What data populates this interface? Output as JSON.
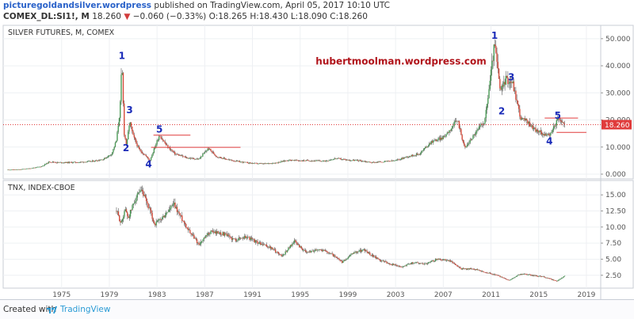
{
  "header": {
    "author": "picturegoldandsilver.wordpress",
    "published": "published on TradingView.com, April 05, 2017 10:10 UTC",
    "symbol": "COMEX_DL:SI1!, M",
    "last": "18.260",
    "change_arrow": "▼",
    "change": "−0.060 (−0.33%)",
    "ohlc": "O:18.265 H:18.430 L:18.090 C:18.260"
  },
  "footer": {
    "created_with": "Created with",
    "brand": "TradingView"
  },
  "chart_data": [
    {
      "type": "candlestick",
      "title": "SILVER FUTURES, M, COMEX",
      "watermark": "hubertmoolman.wordpress.com",
      "y_ticks": [
        "0.000",
        "10.000",
        "20.000",
        "30.000",
        "40.000",
        "50.000"
      ],
      "ylim": [
        0,
        52
      ],
      "last_price_label": "18.260",
      "last_price": 18.26,
      "colors": {
        "up": "#4a9a55",
        "down": "#d44a3a",
        "line": "#2b2b2b",
        "annotation": "#1a2bb8",
        "watermark": "#b0131a",
        "hline": "#e03c3c"
      },
      "series": [
        {
          "x": 1970.5,
          "y": 1.6
        },
        {
          "x": 1971.5,
          "y": 1.7
        },
        {
          "x": 1972.5,
          "y": 2.2
        },
        {
          "x": 1973.3,
          "y": 2.8
        },
        {
          "x": 1974.0,
          "y": 4.6
        },
        {
          "x": 1974.6,
          "y": 4.3
        },
        {
          "x": 1975.5,
          "y": 4.3
        },
        {
          "x": 1976.5,
          "y": 4.4
        },
        {
          "x": 1977.5,
          "y": 4.7
        },
        {
          "x": 1978.5,
          "y": 5.5
        },
        {
          "x": 1979.2,
          "y": 7.5
        },
        {
          "x": 1979.6,
          "y": 12.5
        },
        {
          "x": 1979.9,
          "y": 24.0
        },
        {
          "x": 1980.05,
          "y": 41.0
        },
        {
          "x": 1980.25,
          "y": 15.0
        },
        {
          "x": 1980.45,
          "y": 10.5
        },
        {
          "x": 1980.7,
          "y": 19.5
        },
        {
          "x": 1981.0,
          "y": 14.0
        },
        {
          "x": 1981.5,
          "y": 9.0
        },
        {
          "x": 1982.0,
          "y": 7.0
        },
        {
          "x": 1982.4,
          "y": 5.0
        },
        {
          "x": 1982.9,
          "y": 11.0
        },
        {
          "x": 1983.2,
          "y": 14.5
        },
        {
          "x": 1983.8,
          "y": 10.5
        },
        {
          "x": 1984.5,
          "y": 7.5
        },
        {
          "x": 1985.5,
          "y": 6.0
        },
        {
          "x": 1986.5,
          "y": 5.5
        },
        {
          "x": 1987.3,
          "y": 9.5
        },
        {
          "x": 1988.0,
          "y": 6.5
        },
        {
          "x": 1989.0,
          "y": 5.3
        },
        {
          "x": 1990.0,
          "y": 4.5
        },
        {
          "x": 1991.0,
          "y": 4.0
        },
        {
          "x": 1992.0,
          "y": 3.8
        },
        {
          "x": 1993.0,
          "y": 4.2
        },
        {
          "x": 1994.0,
          "y": 5.2
        },
        {
          "x": 1995.0,
          "y": 5.0
        },
        {
          "x": 1996.0,
          "y": 5.0
        },
        {
          "x": 1997.0,
          "y": 4.8
        },
        {
          "x": 1998.0,
          "y": 5.8
        },
        {
          "x": 1999.0,
          "y": 5.2
        },
        {
          "x": 2000.0,
          "y": 5.0
        },
        {
          "x": 2001.0,
          "y": 4.3
        },
        {
          "x": 2002.0,
          "y": 4.6
        },
        {
          "x": 2003.0,
          "y": 5.0
        },
        {
          "x": 2004.0,
          "y": 6.5
        },
        {
          "x": 2005.0,
          "y": 7.5
        },
        {
          "x": 2006.0,
          "y": 12.0
        },
        {
          "x": 2007.0,
          "y": 13.5
        },
        {
          "x": 2008.2,
          "y": 20.0
        },
        {
          "x": 2008.8,
          "y": 9.5
        },
        {
          "x": 2009.5,
          "y": 14.0
        },
        {
          "x": 2010.5,
          "y": 20.0
        },
        {
          "x": 2011.3,
          "y": 48.0
        },
        {
          "x": 2011.8,
          "y": 30.0
        },
        {
          "x": 2012.2,
          "y": 35.0
        },
        {
          "x": 2012.8,
          "y": 34.0
        },
        {
          "x": 2013.5,
          "y": 20.5
        },
        {
          "x": 2014.0,
          "y": 19.5
        },
        {
          "x": 2014.8,
          "y": 16.0
        },
        {
          "x": 2015.9,
          "y": 14.0
        },
        {
          "x": 2016.6,
          "y": 20.5
        },
        {
          "x": 2017.2,
          "y": 18.26
        }
      ],
      "annotations": [
        {
          "label": "1",
          "x": 1980.05,
          "y": 42.5
        },
        {
          "label": "2",
          "x": 1980.4,
          "y": 8.5
        },
        {
          "label": "3",
          "x": 1980.7,
          "y": 22.5
        },
        {
          "label": "4",
          "x": 1982.3,
          "y": 2.5
        },
        {
          "label": "5",
          "x": 1983.2,
          "y": 15.4
        },
        {
          "label": "1",
          "x": 2011.3,
          "y": 50.0
        },
        {
          "label": "2",
          "x": 2011.9,
          "y": 22.0
        },
        {
          "label": "3",
          "x": 2012.7,
          "y": 34.6
        },
        {
          "label": "4",
          "x": 2015.9,
          "y": 11.0
        },
        {
          "label": "5",
          "x": 2016.6,
          "y": 20.5
        }
      ],
      "hlines": [
        {
          "x1": 1982.7,
          "x2": 1985.8,
          "y": 14.4
        },
        {
          "x1": 1982.5,
          "x2": 1990.0,
          "y": 9.9
        },
        {
          "x1": 2015.5,
          "x2": 2018.3,
          "y": 20.7
        },
        {
          "x1": 2016.5,
          "x2": 2019.0,
          "y": 15.4
        }
      ]
    },
    {
      "type": "candlestick",
      "title": "TNX, INDEX-CBOE",
      "y_ticks": [
        "2.50",
        "5.00",
        "7.50",
        "10.00",
        "12.50",
        "15.00"
      ],
      "ylim": [
        0.5,
        16.5
      ],
      "series": [
        {
          "x": 1979.6,
          "y": 12.5
        },
        {
          "x": 1980.0,
          "y": 10.5
        },
        {
          "x": 1980.3,
          "y": 12.8
        },
        {
          "x": 1980.6,
          "y": 11.5
        },
        {
          "x": 1981.2,
          "y": 14.5
        },
        {
          "x": 1981.7,
          "y": 15.5
        },
        {
          "x": 1982.2,
          "y": 13.5
        },
        {
          "x": 1982.8,
          "y": 10.4
        },
        {
          "x": 1983.5,
          "y": 11.5
        },
        {
          "x": 1984.4,
          "y": 13.5
        },
        {
          "x": 1985.5,
          "y": 10.0
        },
        {
          "x": 1986.5,
          "y": 7.3
        },
        {
          "x": 1987.5,
          "y": 9.3
        },
        {
          "x": 1988.5,
          "y": 9.0
        },
        {
          "x": 1989.5,
          "y": 8.0
        },
        {
          "x": 1990.5,
          "y": 8.5
        },
        {
          "x": 1991.5,
          "y": 7.5
        },
        {
          "x": 1992.5,
          "y": 6.8
        },
        {
          "x": 1993.5,
          "y": 5.5
        },
        {
          "x": 1994.5,
          "y": 7.8
        },
        {
          "x": 1995.5,
          "y": 6.0
        },
        {
          "x": 1996.5,
          "y": 6.6
        },
        {
          "x": 1997.5,
          "y": 6.0
        },
        {
          "x": 1998.5,
          "y": 4.5
        },
        {
          "x": 1999.5,
          "y": 6.0
        },
        {
          "x": 2000.3,
          "y": 6.5
        },
        {
          "x": 2001.5,
          "y": 5.0
        },
        {
          "x": 2002.5,
          "y": 4.3
        },
        {
          "x": 2003.5,
          "y": 3.8
        },
        {
          "x": 2004.5,
          "y": 4.5
        },
        {
          "x": 2005.5,
          "y": 4.3
        },
        {
          "x": 2006.5,
          "y": 5.0
        },
        {
          "x": 2007.5,
          "y": 4.8
        },
        {
          "x": 2008.5,
          "y": 3.5
        },
        {
          "x": 2009.5,
          "y": 3.5
        },
        {
          "x": 2010.5,
          "y": 3.0
        },
        {
          "x": 2011.5,
          "y": 2.5
        },
        {
          "x": 2012.5,
          "y": 1.7
        },
        {
          "x": 2013.5,
          "y": 2.7
        },
        {
          "x": 2014.5,
          "y": 2.5
        },
        {
          "x": 2015.5,
          "y": 2.2
        },
        {
          "x": 2016.5,
          "y": 1.6
        },
        {
          "x": 2017.2,
          "y": 2.4
        }
      ]
    }
  ],
  "x_axis": {
    "ticks": [
      "1975",
      "1979",
      "1983",
      "1987",
      "1991",
      "1995",
      "1999",
      "2003",
      "2007",
      "2011",
      "2015",
      "2019"
    ],
    "tick_years": [
      1975,
      1979,
      1983,
      1987,
      1991,
      1995,
      1999,
      2003,
      2007,
      2011,
      2015,
      2019
    ],
    "xlim": [
      1970.1,
      2020.2
    ]
  }
}
